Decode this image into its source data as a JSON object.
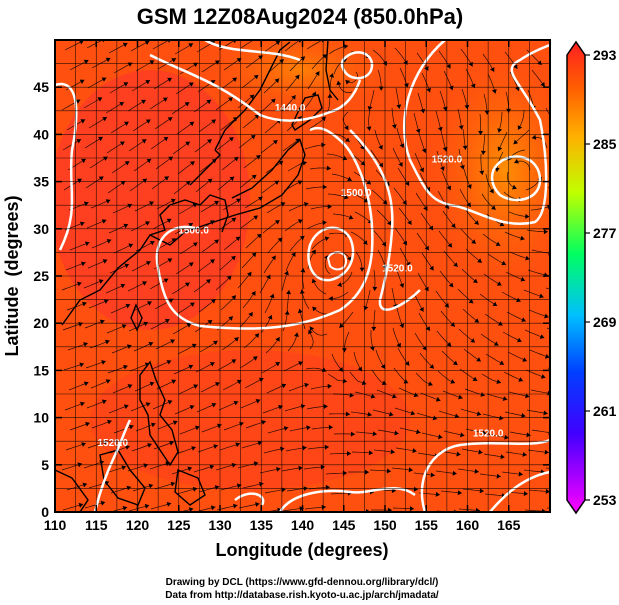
{
  "chart_data": {
    "type": "heatmap",
    "title": "GSM 12Z08Aug2024 (850.0hPa)",
    "xlabel": "Longitude (degrees)",
    "ylabel": "Latitude  (degrees)",
    "xlim": [
      110,
      170
    ],
    "ylim": [
      0,
      50
    ],
    "x_ticks": [
      110,
      115,
      120,
      125,
      130,
      135,
      140,
      145,
      150,
      155,
      160,
      165
    ],
    "y_ticks": [
      0,
      5,
      10,
      15,
      20,
      25,
      30,
      35,
      40,
      45
    ],
    "grid": true,
    "colorbar": {
      "ticks": [
        253,
        261,
        269,
        277,
        285,
        293
      ],
      "range": [
        253,
        293
      ],
      "colors": [
        "#ff00ff",
        "#0000ff",
        "#00c0ff",
        "#00ff40",
        "#e0ff00",
        "#ff9000",
        "#ff2020"
      ]
    },
    "contour_labels": [
      {
        "text": "1440.0",
        "lon": 138.5,
        "lat": 42.5
      },
      {
        "text": "1500.0",
        "lon": 126.8,
        "lat": 29.5
      },
      {
        "text": "1500.0",
        "lon": 146.5,
        "lat": 33.5
      },
      {
        "text": "1520.0",
        "lon": 151.5,
        "lat": 25.5
      },
      {
        "text": "1520.0",
        "lon": 157.5,
        "lat": 37.0
      },
      {
        "text": "1520.0",
        "lon": 162.5,
        "lat": 8.0
      },
      {
        "text": "1520.0",
        "lon": 117.0,
        "lat": 7.0
      }
    ]
  },
  "credits": {
    "line1": "Drawing by DCL (https://www.gfd-dennou.org/library/dcl/)",
    "line2": "Data from http://database.rish.kyoto-u.ac.jp/arch/jmadata/"
  }
}
